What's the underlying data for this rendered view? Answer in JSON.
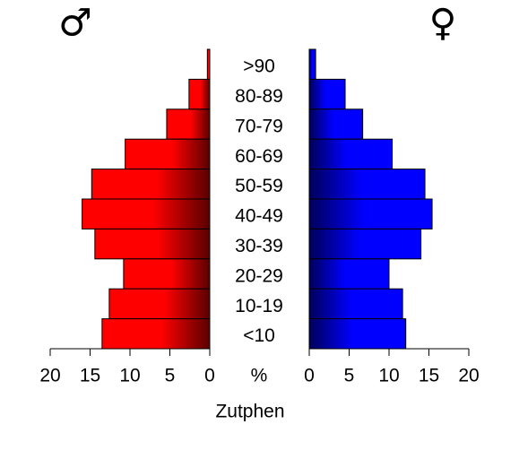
{
  "chart_data": {
    "type": "pyramid",
    "title": "Zutphen",
    "axis_label": "%",
    "categories": [
      ">90",
      "80-89",
      "70-79",
      "60-69",
      "50-59",
      "40-49",
      "30-39",
      "20-29",
      "10-19",
      "<10"
    ],
    "series": [
      {
        "name": "♂",
        "color": "#ff0000",
        "values": [
          0.3,
          2.6,
          5.4,
          10.6,
          14.8,
          16.0,
          14.4,
          10.8,
          12.6,
          13.5
        ]
      },
      {
        "name": "♀",
        "color": "#0000ff",
        "values": [
          0.8,
          4.5,
          6.7,
          10.4,
          14.5,
          15.4,
          14.0,
          10.0,
          11.7,
          12.1
        ]
      }
    ],
    "xlim": [
      0,
      20
    ],
    "xticks": [
      0,
      5,
      10,
      15,
      20
    ]
  }
}
